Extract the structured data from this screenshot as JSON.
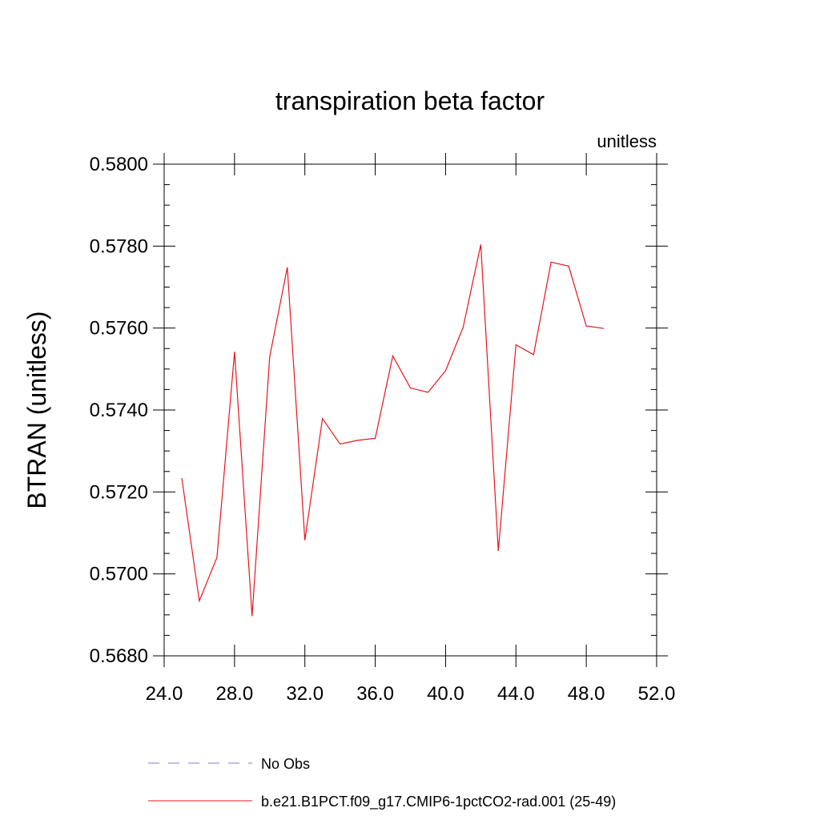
{
  "chart_data": {
    "type": "line",
    "title": "transpiration beta factor",
    "units_label": "unitless",
    "xlabel": "",
    "ylabel": "BTRAN  (unitless)",
    "xlim": [
      24.0,
      52.0
    ],
    "ylim": [
      0.568,
      0.58
    ],
    "x_ticks": [
      "24.0",
      "28.0",
      "32.0",
      "36.0",
      "40.0",
      "44.0",
      "48.0",
      "52.0"
    ],
    "y_ticks": [
      "0.5680",
      "0.5700",
      "0.5720",
      "0.5740",
      "0.5760",
      "0.5780",
      "0.5800"
    ],
    "grid": false,
    "legend_position": "bottom",
    "series": [
      {
        "name": "No Obs",
        "color": "#7f7fc8",
        "dash": "dashed",
        "x": [],
        "y": []
      },
      {
        "name": "b.e21.B1PCT.f09_g17.CMIP6-1pctCO2-rad.001 (25-49)",
        "color": "#e8141c",
        "dash": "solid",
        "x": [
          25,
          26,
          27,
          28,
          29,
          30,
          31,
          32,
          33,
          34,
          35,
          36,
          37,
          38,
          39,
          40,
          41,
          42,
          43,
          44,
          45,
          46,
          47,
          48,
          49
        ],
        "y": [
          0.57234,
          0.56934,
          0.5704,
          0.57542,
          0.56897,
          0.5753,
          0.57748,
          0.57082,
          0.57379,
          0.57317,
          0.57326,
          0.57331,
          0.57532,
          0.57454,
          0.57443,
          0.57496,
          0.57602,
          0.57804,
          0.57056,
          0.57559,
          0.57535,
          0.57761,
          0.57751,
          0.57605,
          0.57599
        ]
      }
    ]
  }
}
